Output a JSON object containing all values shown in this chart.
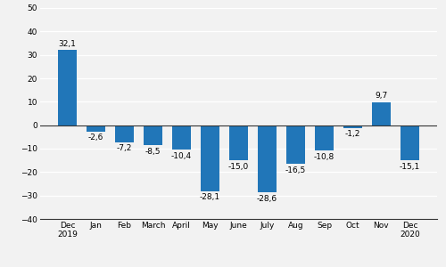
{
  "categories": [
    "Dec\n2019",
    "Jan",
    "Feb",
    "March",
    "April",
    "May",
    "June",
    "July",
    "Aug",
    "Sep",
    "Oct",
    "Nov",
    "Dec\n2020"
  ],
  "values": [
    32.1,
    -2.6,
    -7.2,
    -8.5,
    -10.4,
    -28.1,
    -15.0,
    -28.6,
    -16.5,
    -10.8,
    -1.2,
    9.7,
    -15.1
  ],
  "bar_color": "#2176b8",
  "ylim": [
    -40,
    50
  ],
  "yticks": [
    -40,
    -30,
    -20,
    -10,
    0,
    10,
    20,
    30,
    40,
    50
  ],
  "bar_width": 0.65,
  "label_fontsize": 6.5,
  "tick_fontsize": 6.5,
  "background_color": "#f2f2f2",
  "grid_color": "#ffffff",
  "zero_line_color": "#333333",
  "spine_color": "#333333"
}
